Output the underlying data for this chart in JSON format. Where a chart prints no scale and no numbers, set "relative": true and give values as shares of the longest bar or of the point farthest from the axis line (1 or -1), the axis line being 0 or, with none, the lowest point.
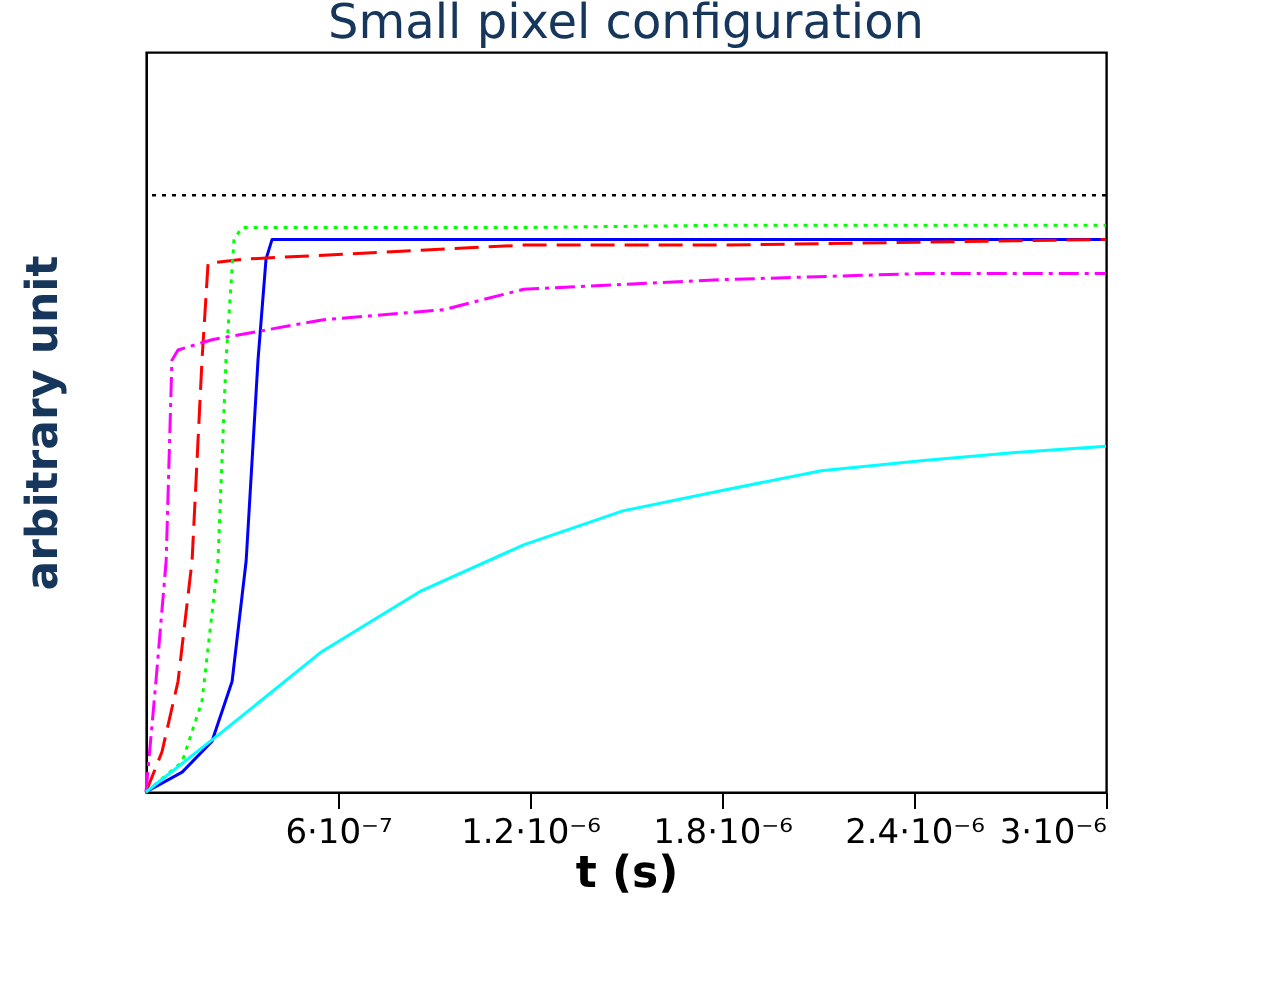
{
  "chart_data": {
    "type": "line",
    "title": "Small pixel configuration",
    "xlabel": "t (s)",
    "ylabel": "arbitrary unit",
    "relative": true,
    "xlim": [
      0,
      3e-06
    ],
    "xticks": [
      {
        "value": 6e-07,
        "label": "6·10⁻⁷"
      },
      {
        "value": 1.2e-06,
        "label": "1.2·10⁻⁶"
      },
      {
        "value": 1.8e-06,
        "label": "1.8·10⁻⁶"
      },
      {
        "value": 2.4e-06,
        "label": "2.4·10⁻⁶"
      },
      {
        "value": 3e-06,
        "label": "3·10⁻⁶"
      }
    ],
    "marker": "none",
    "ref_lines": [
      {
        "axis": "y",
        "value": 1.053,
        "color": "#000000",
        "line_style": "dotted"
      }
    ],
    "series": [
      {
        "color": "#0000ff",
        "line_style": "solid",
        "x": [
          0,
          1.13e-07,
          2.06e-07,
          2.69e-07,
          3.13e-07,
          3.5e-07,
          3.75e-07,
          3.94e-07,
          1.18e-06,
          3e-06
        ],
        "values": [
          0,
          0.035,
          0.089,
          0.195,
          0.408,
          0.762,
          0.94,
          0.975,
          0.975,
          0.975
        ]
      },
      {
        "color": "#ff0000",
        "line_style": "dashed",
        "x": [
          0,
          5e-08,
          1e-07,
          1.44e-07,
          1.75e-07,
          1.94e-07,
          3e-07,
          1.18e-06,
          1.8e-06,
          3e-06
        ],
        "values": [
          0,
          0.071,
          0.195,
          0.408,
          0.762,
          0.933,
          0.94,
          0.965,
          0.965,
          0.975
        ]
      },
      {
        "color": "#00ff00",
        "line_style": "dotted",
        "x": [
          0,
          1.13e-07,
          1.75e-07,
          2.25e-07,
          2.5e-07,
          2.75e-07,
          3e-07,
          1.18e-06,
          1.8e-06,
          3e-06
        ],
        "values": [
          0,
          0.053,
          0.16,
          0.408,
          0.762,
          0.975,
          0.996,
          0.996,
          1,
          1
        ]
      },
      {
        "color": "#ff00ff",
        "line_style": "dashdot",
        "x": [
          0,
          3.1e-08,
          6.3e-08,
          8.1e-08,
          1e-07,
          2.06e-07,
          5.5e-07,
          9.3e-07,
          1.18e-06,
          1.8e-06,
          2.43e-06,
          3e-06
        ],
        "values": [
          0,
          0.195,
          0.408,
          0.762,
          0.78,
          0.798,
          0.833,
          0.851,
          0.887,
          0.904,
          0.915,
          0.915
        ]
      },
      {
        "color": "#00ffff",
        "line_style": "solid",
        "x": [
          0,
          2.38e-07,
          5.5e-07,
          8.6e-07,
          1.18e-06,
          1.49e-06,
          1.8e-06,
          2.11e-06,
          2.43e-06,
          2.74e-06,
          3e-06
        ],
        "values": [
          0,
          0.106,
          0.248,
          0.355,
          0.436,
          0.496,
          0.532,
          0.567,
          0.585,
          0.6,
          0.61
        ]
      }
    ]
  }
}
